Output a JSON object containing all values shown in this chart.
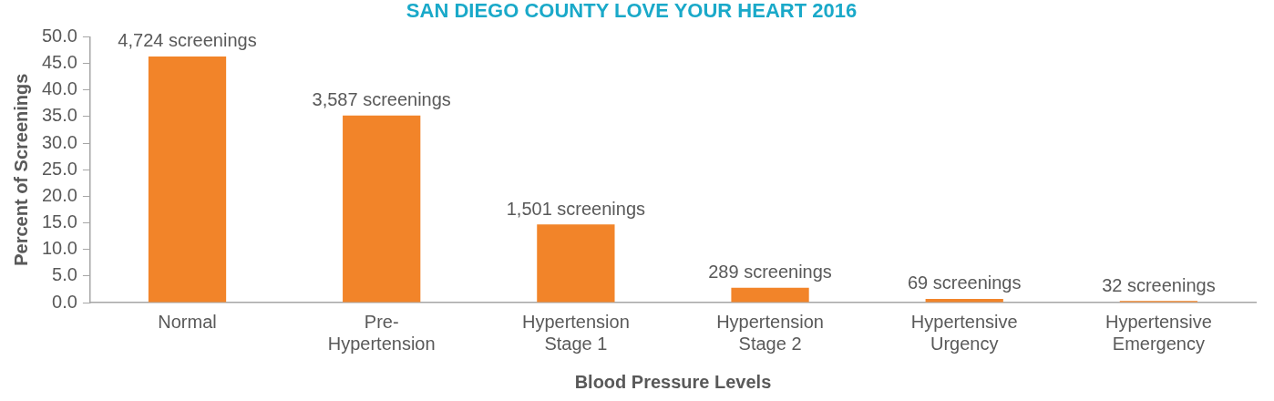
{
  "chart_data": {
    "type": "bar",
    "title": "SAN DIEGO COUNTY LOVE YOUR HEART 2016",
    "xlabel": "Blood Pressure Levels",
    "ylabel": "Percent of Screenings",
    "categories": [
      "Normal",
      "Pre-\nHypertension",
      "Hypertension\nStage 1",
      "Hypertension\nStage 2",
      "Hypertensive\nUrgency",
      "Hypertensive\nEmergency"
    ],
    "values": [
      46.3,
      35.2,
      14.7,
      2.8,
      0.7,
      0.3
    ],
    "annotations": [
      {
        "text": "4,724 screenings",
        "x": "Normal",
        "y": 46.3
      },
      {
        "text": "3,587 screenings",
        "x": "Pre-\nHypertension",
        "y": 35.2
      },
      {
        "text": "1,501 screenings",
        "x": "Hypertension\nStage 1",
        "y": 14.7
      },
      {
        "text": "289 screenings",
        "x": "Hypertension\nStage 2",
        "y": 2.8
      },
      {
        "text": "69 screenings",
        "x": "Hypertensive\nUrgency",
        "y": 0.7
      },
      {
        "text": "32 screenings",
        "x": "Hypertensive\nEmergency",
        "y": 0.3
      }
    ],
    "color": "#f28429",
    "ylim": [
      0,
      50
    ],
    "yticks": [
      {
        "value": 0,
        "label": "0.0"
      },
      {
        "value": 5,
        "label": "5.0"
      },
      {
        "value": 10,
        "label": "10.0"
      },
      {
        "value": 15,
        "label": "15.0"
      },
      {
        "value": 20,
        "label": "20.0"
      },
      {
        "value": 25,
        "label": "25.0"
      },
      {
        "value": 30,
        "label": "30.0"
      },
      {
        "value": 35,
        "label": "35.0"
      },
      {
        "value": 40,
        "label": "40.0"
      },
      {
        "value": 45,
        "label": "45.0"
      },
      {
        "value": 50,
        "label": "50.0"
      }
    ],
    "grid": false,
    "legend": false
  }
}
